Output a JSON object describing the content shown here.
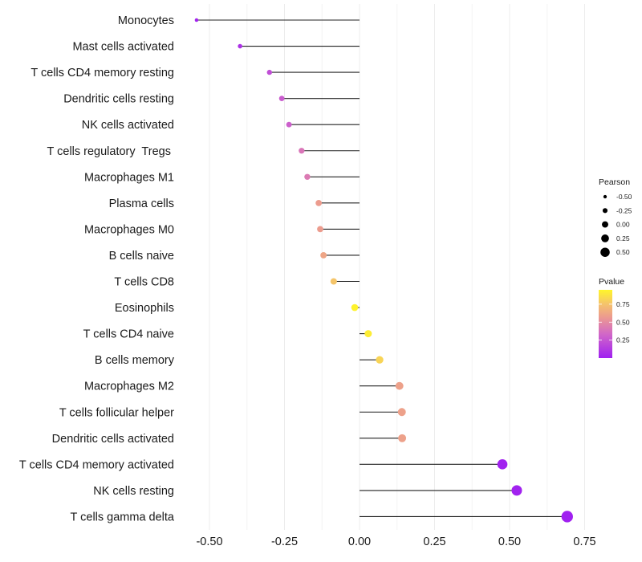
{
  "chart_data": {
    "type": "lollipop",
    "title": "",
    "xlabel": "",
    "ylabel": "",
    "xlim": [
      -0.56,
      0.78
    ],
    "x_ticks": [
      -0.5,
      -0.25,
      0.0,
      0.25,
      0.5,
      0.75
    ],
    "x_tick_labels": [
      "-0.50",
      "-0.25",
      "0.00",
      "0.25",
      "0.50",
      "0.75"
    ],
    "grid": true,
    "categories": [
      "Monocytes",
      "Mast cells activated",
      "T cells CD4 memory resting",
      "Dendritic cells resting",
      "NK cells activated",
      "T cells regulatory  Tregs ",
      "Macrophages M1",
      "Plasma cells",
      "Macrophages M0",
      "B cells naive",
      "T cells CD8",
      "Eosinophils",
      "T cells CD4 naive",
      "B cells memory",
      "Macrophages M2",
      "T cells follicular helper",
      "Dendritic cells activated",
      "T cells CD4 memory activated",
      "NK cells resting",
      "T cells gamma delta"
    ],
    "pearson": [
      -0.543,
      -0.398,
      -0.3,
      -0.259,
      -0.235,
      -0.193,
      -0.174,
      -0.136,
      -0.131,
      -0.12,
      -0.086,
      -0.016,
      0.029,
      0.067,
      0.133,
      0.141,
      0.142,
      0.476,
      0.524,
      0.692
    ],
    "pvalue": [
      0.02,
      0.08,
      0.22,
      0.28,
      0.3,
      0.4,
      0.42,
      0.58,
      0.58,
      0.62,
      0.76,
      0.94,
      0.92,
      0.82,
      0.6,
      0.6,
      0.6,
      0.01,
      0.01,
      0.001
    ],
    "size_legend": {
      "title": "Pearson",
      "values": [
        -0.5,
        -0.25,
        0.0,
        0.25,
        0.5
      ],
      "labels": [
        "-0.50",
        "-0.25",
        "0.00",
        "0.25",
        "0.50"
      ]
    },
    "color_legend": {
      "title": "Pvalue",
      "range": [
        0.0,
        0.95
      ],
      "ticks": [
        0.25,
        0.5,
        0.75
      ],
      "tick_labels": [
        "0.25",
        "0.50",
        "0.75"
      ],
      "low_color": "#A020F0",
      "high_color": "#FFFF00"
    },
    "legend_position": "right"
  }
}
